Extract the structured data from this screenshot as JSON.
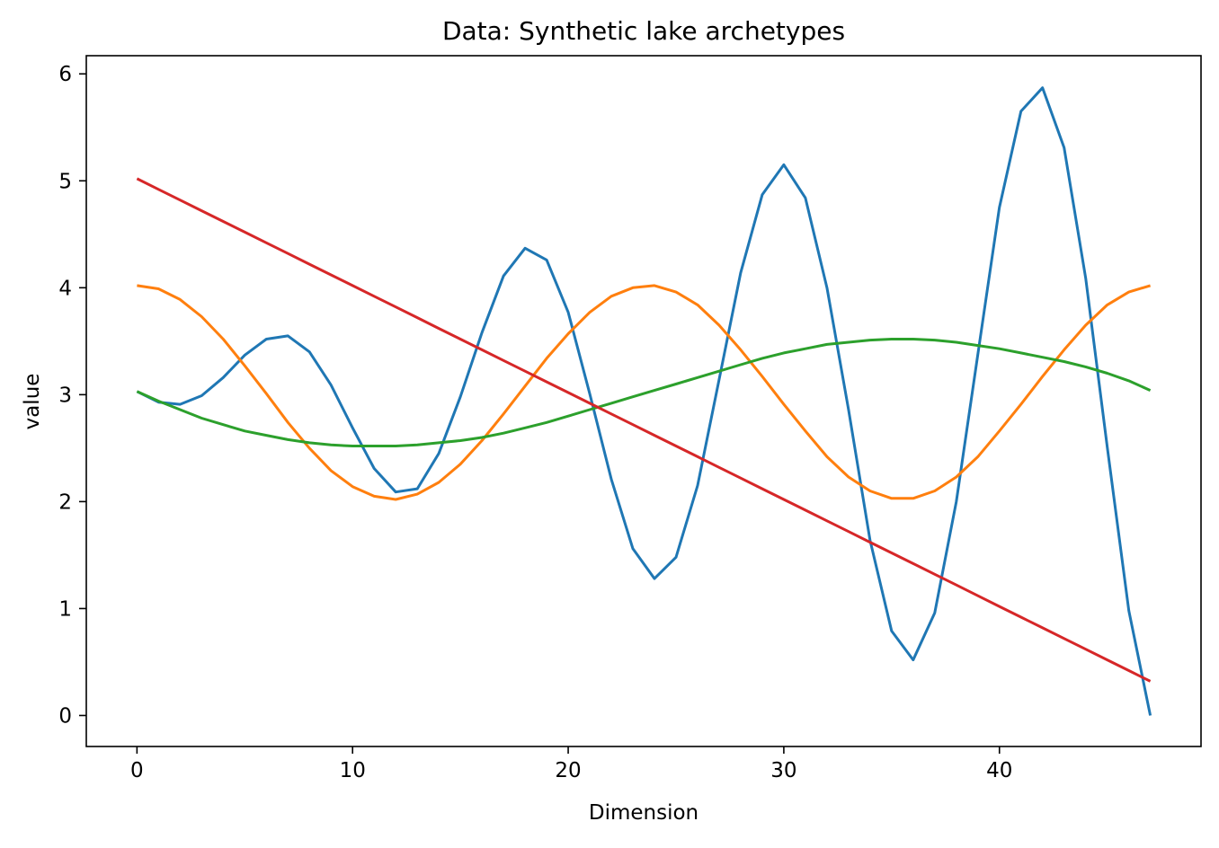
{
  "chart_data": {
    "type": "line",
    "title": "Data: Synthetic lake archetypes",
    "xlabel": "Dimension",
    "ylabel": "value",
    "xlim": [
      -2.35,
      49.35
    ],
    "ylim": [
      -0.29,
      6.17
    ],
    "x_ticks": [
      0,
      10,
      20,
      30,
      40
    ],
    "y_ticks": [
      0,
      1,
      2,
      3,
      4,
      5,
      6
    ],
    "x_tick_labels": [
      "0",
      "10",
      "20",
      "30",
      "40"
    ],
    "y_tick_labels": [
      "0",
      "1",
      "2",
      "3",
      "4",
      "5",
      "6"
    ],
    "legend": "none",
    "grid": false,
    "x": [
      0,
      1,
      2,
      3,
      4,
      5,
      6,
      7,
      8,
      9,
      10,
      11,
      12,
      13,
      14,
      15,
      16,
      17,
      18,
      19,
      20,
      21,
      22,
      23,
      24,
      25,
      26,
      27,
      28,
      29,
      30,
      31,
      32,
      33,
      34,
      35,
      36,
      37,
      38,
      39,
      40,
      41,
      42,
      43,
      44,
      45,
      46,
      47
    ],
    "series": [
      {
        "color": "#1f77b4",
        "values": [
          3.03,
          2.93,
          2.91,
          2.99,
          3.16,
          3.37,
          3.52,
          3.55,
          3.4,
          3.09,
          2.69,
          2.31,
          2.09,
          2.12,
          2.45,
          2.98,
          3.58,
          4.11,
          4.37,
          4.26,
          3.77,
          3.01,
          2.21,
          1.56,
          1.28,
          1.48,
          2.15,
          3.14,
          4.14,
          4.87,
          5.15,
          4.84,
          4.0,
          2.86,
          1.64,
          0.79,
          0.52,
          0.96,
          2.0,
          3.38,
          4.75,
          5.65,
          5.87,
          5.31,
          4.09,
          2.51,
          0.98,
          0.0
        ]
      },
      {
        "color": "#ff7f0e",
        "values": [
          4.02,
          3.99,
          3.89,
          3.73,
          3.52,
          3.27,
          3.01,
          2.74,
          2.5,
          2.29,
          2.14,
          2.05,
          2.02,
          2.07,
          2.18,
          2.35,
          2.57,
          2.82,
          3.08,
          3.34,
          3.57,
          3.77,
          3.92,
          4.0,
          4.02,
          3.96,
          3.84,
          3.65,
          3.42,
          3.17,
          2.91,
          2.66,
          2.42,
          2.23,
          2.1,
          2.03,
          2.03,
          2.1,
          2.23,
          2.42,
          2.66,
          2.91,
          3.17,
          3.42,
          3.65,
          3.84,
          3.96,
          4.02
        ]
      },
      {
        "color": "#2ca02c",
        "values": [
          3.03,
          2.94,
          2.86,
          2.78,
          2.72,
          2.66,
          2.62,
          2.58,
          2.55,
          2.53,
          2.52,
          2.52,
          2.52,
          2.53,
          2.55,
          2.57,
          2.6,
          2.64,
          2.69,
          2.74,
          2.8,
          2.86,
          2.92,
          2.98,
          3.04,
          3.1,
          3.16,
          3.22,
          3.28,
          3.34,
          3.39,
          3.43,
          3.47,
          3.49,
          3.51,
          3.52,
          3.52,
          3.51,
          3.49,
          3.46,
          3.43,
          3.39,
          3.35,
          3.31,
          3.26,
          3.2,
          3.13,
          3.04
        ]
      },
      {
        "color": "#d62728",
        "values": [
          5.02,
          4.92,
          4.82,
          4.72,
          4.62,
          4.52,
          4.42,
          4.32,
          4.22,
          4.12,
          4.02,
          3.92,
          3.82,
          3.72,
          3.62,
          3.52,
          3.42,
          3.32,
          3.22,
          3.12,
          3.02,
          2.92,
          2.82,
          2.72,
          2.62,
          2.52,
          2.42,
          2.32,
          2.22,
          2.12,
          2.02,
          1.92,
          1.82,
          1.72,
          1.62,
          1.52,
          1.42,
          1.32,
          1.22,
          1.12,
          1.02,
          0.92,
          0.82,
          0.72,
          0.62,
          0.52,
          0.42,
          0.32
        ]
      }
    ]
  }
}
